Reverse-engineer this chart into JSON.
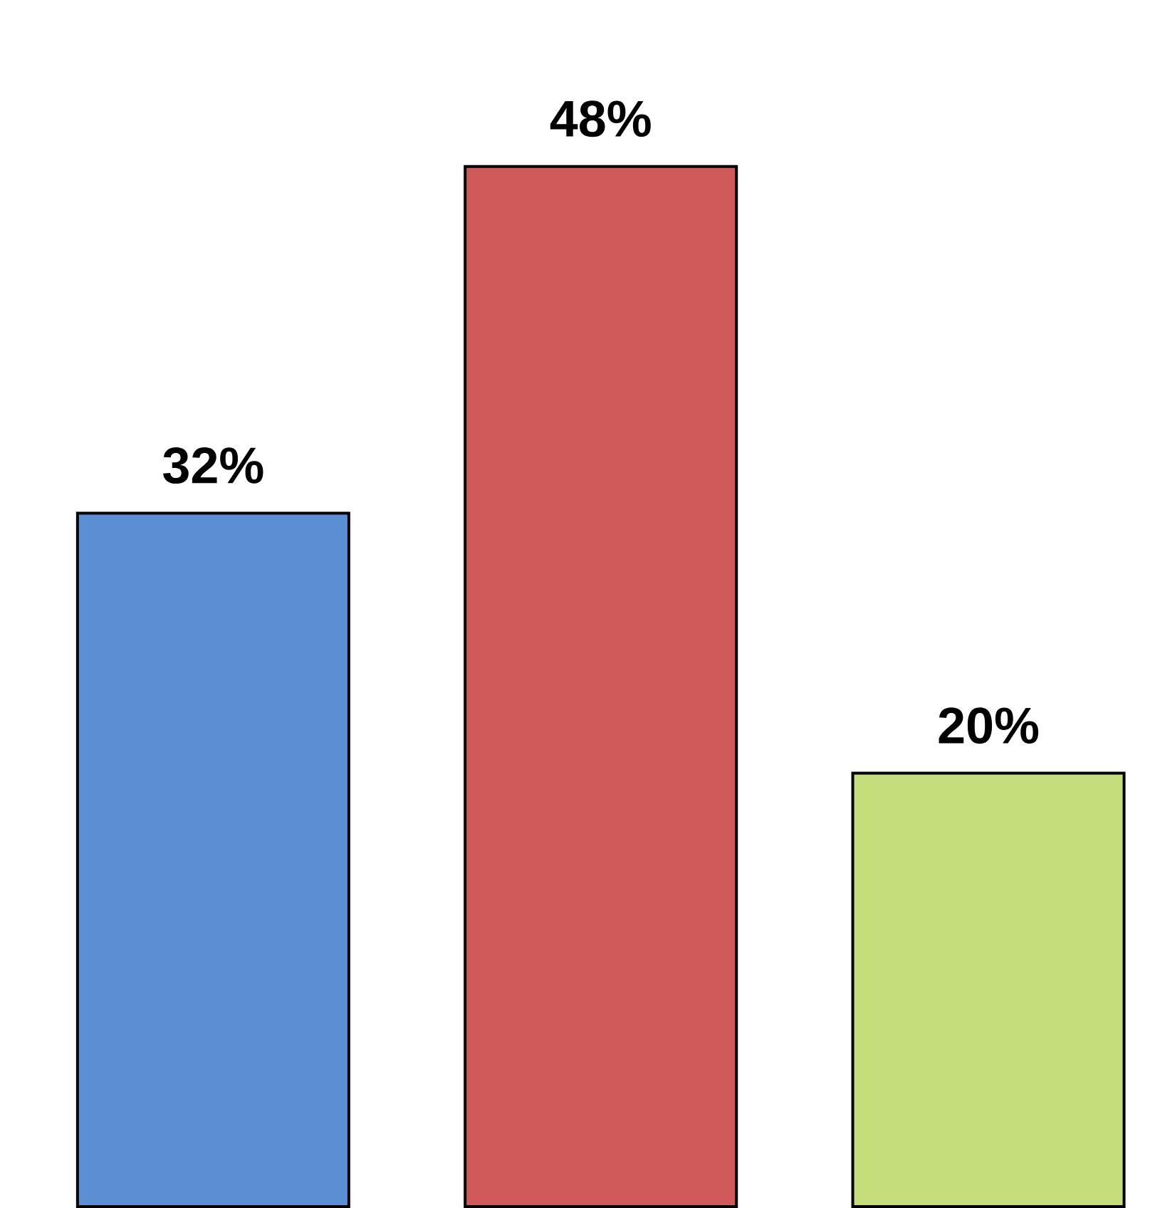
{
  "chart_data": {
    "type": "bar",
    "categories": [
      null,
      null,
      null
    ],
    "values": [
      32,
      48,
      20
    ],
    "value_labels": [
      "32%",
      "48%",
      "20%"
    ],
    "colors": [
      "#5b8fd4",
      "#d05a5a",
      "#c5dd7a"
    ]
  }
}
